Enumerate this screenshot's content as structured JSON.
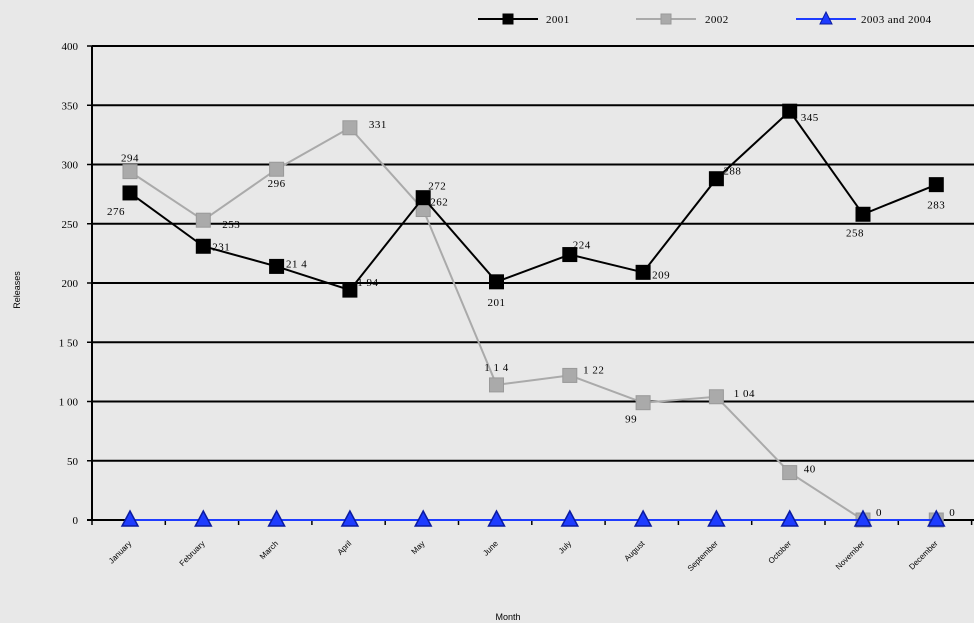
{
  "chart_data": {
    "type": "line",
    "categories": [
      "January",
      "February",
      "March",
      "April",
      "May",
      "June",
      "July",
      "August",
      "September",
      "October",
      "November",
      "December"
    ],
    "series": [
      {
        "name": "2001",
        "color": "#000000",
        "marker": "square",
        "values": [
          276,
          231,
          214,
          194,
          272,
          201,
          224,
          209,
          288,
          345,
          258,
          283
        ],
        "labels": [
          "276",
          "231",
          "21 4",
          "1 94",
          "272",
          "201",
          "224",
          "209",
          "288",
          "345",
          "258",
          "283"
        ]
      },
      {
        "name": "2002",
        "color": "#aaaaaa",
        "marker": "square",
        "values": [
          294,
          253,
          296,
          331,
          262,
          114,
          122,
          99,
          104,
          40,
          0,
          0
        ],
        "labels": [
          "294",
          "253",
          "296",
          "331",
          "262",
          "1 1 4",
          "1 22",
          "99",
          "1 04",
          "40",
          "0",
          "0"
        ]
      },
      {
        "name": "2003 and 2004",
        "color": "#1e3cff",
        "marker": "triangle",
        "values": [
          0,
          0,
          0,
          0,
          0,
          0,
          0,
          0,
          0,
          0,
          0,
          0
        ],
        "labels": []
      }
    ],
    "yticks": [
      "0",
      "50",
      "1 00",
      "1 50",
      "200",
      "250",
      "300",
      "350",
      "400"
    ],
    "ylim": [
      0,
      400
    ],
    "xlabel": "Month",
    "ylabel": "Releases",
    "grid": true,
    "legend": "top"
  }
}
